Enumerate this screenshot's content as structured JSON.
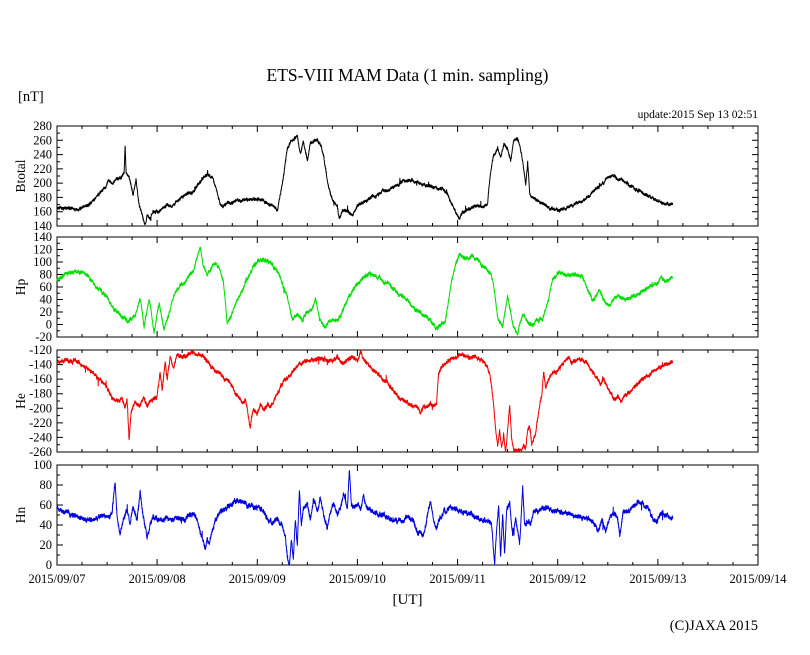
{
  "chart_data": {
    "type": "line",
    "title": "ETS-VIII MAM Data (1 min. sampling)",
    "unit_label": "[nT]",
    "update_note": "update:2015 Sep 13 02:51",
    "xlabel": "[UT]",
    "copyright": "(C)JAXA 2015",
    "x_tick_labels": [
      "2015/09/07",
      "2015/09/08",
      "2015/09/09",
      "2015/09/10",
      "2015/09/11",
      "2015/09/12",
      "2015/09/13",
      "2015/09/14"
    ],
    "x_range_days": [
      0,
      7
    ],
    "x_minor_tick_hours": 6,
    "data_end_day": 6.15,
    "grid": false,
    "legend": "none",
    "panels": [
      {
        "name": "Btotal",
        "color": "#000000",
        "ylim": [
          140,
          280
        ],
        "ytick_step": 20,
        "anchor_days": [
          0,
          0.1,
          0.2,
          0.3,
          0.36,
          0.42,
          0.48,
          0.52,
          0.56,
          0.6,
          0.64,
          0.67,
          0.68,
          0.69,
          0.73,
          0.76,
          0.79,
          0.82,
          0.85,
          0.88,
          0.9,
          0.93,
          0.96,
          1,
          1.05,
          1.1,
          1.15,
          1.2,
          1.25,
          1.3,
          1.35,
          1.4,
          1.45,
          1.5,
          1.55,
          1.6,
          1.63,
          1.66,
          1.7,
          1.75,
          1.8,
          1.85,
          1.9,
          1.95,
          2,
          2.05,
          2.1,
          2.15,
          2.2,
          2.25,
          2.3,
          2.35,
          2.4,
          2.43,
          2.46,
          2.5,
          2.53,
          2.57,
          2.6,
          2.63,
          2.66,
          2.7,
          2.73,
          2.76,
          2.8,
          2.82,
          2.85,
          2.9,
          2.95,
          3,
          3.05,
          3.1,
          3.15,
          3.2,
          3.25,
          3.3,
          3.35,
          3.4,
          3.45,
          3.5,
          3.55,
          3.6,
          3.65,
          3.7,
          3.75,
          3.8,
          3.85,
          3.9,
          3.95,
          4,
          4.02,
          4.05,
          4.1,
          4.15,
          4.2,
          4.25,
          4.3,
          4.33,
          4.36,
          4.4,
          4.43,
          4.46,
          4.5,
          4.53,
          4.56,
          4.6,
          4.63,
          4.65,
          4.68,
          4.7,
          4.72,
          4.75,
          4.8,
          4.85,
          4.9,
          4.95,
          5,
          5.05,
          5.1,
          5.15,
          5.2,
          5.25,
          5.3,
          5.35,
          5.4,
          5.45,
          5.5,
          5.55,
          5.6,
          5.65,
          5.7,
          5.75,
          5.8,
          5.85,
          5.9,
          5.95,
          6,
          6.05,
          6.1,
          6.15
        ],
        "anchor_values": [
          165,
          164,
          163,
          168,
          175,
          185,
          195,
          205,
          200,
          205,
          210,
          215,
          253,
          215,
          205,
          185,
          205,
          170,
          155,
          142,
          155,
          148,
          160,
          158,
          165,
          170,
          168,
          175,
          180,
          185,
          188,
          195,
          205,
          213,
          208,
          185,
          170,
          168,
          172,
          174,
          175,
          176,
          177,
          178,
          177,
          175,
          172,
          170,
          162,
          200,
          248,
          262,
          265,
          240,
          258,
          232,
          255,
          260,
          262,
          255,
          240,
          205,
          185,
          175,
          165,
          150,
          162,
          160,
          155,
          168,
          172,
          177,
          180,
          184,
          188,
          190,
          194,
          198,
          202,
          203,
          205,
          200,
          198,
          196,
          195,
          193,
          192,
          185,
          168,
          155,
          150,
          160,
          163,
          165,
          170,
          166,
          172,
          215,
          240,
          250,
          235,
          255,
          248,
          230,
          260,
          263,
          245,
          232,
          195,
          230,
          185,
          180,
          175,
          172,
          168,
          164,
          162,
          164,
          166,
          169,
          172,
          176,
          181,
          188,
          195,
          200,
          207,
          211,
          207,
          204,
          200,
          195,
          190,
          186,
          182,
          178,
          175,
          172,
          171,
          170
        ]
      },
      {
        "name": "Hp",
        "color": "#00dd00",
        "ylim": [
          -20,
          140
        ],
        "ytick_step": 20,
        "anchor_days": [
          0,
          0.08,
          0.18,
          0.28,
          0.38,
          0.5,
          0.58,
          0.65,
          0.72,
          0.78,
          0.83,
          0.87,
          0.92,
          0.97,
          1.02,
          1.07,
          1.12,
          1.18,
          1.28,
          1.36,
          1.43,
          1.46,
          1.5,
          1.56,
          1.63,
          1.66,
          1.7,
          1.73,
          1.78,
          1.85,
          1.95,
          2,
          2.08,
          2.15,
          2.22,
          2.3,
          2.35,
          2.4,
          2.45,
          2.5,
          2.55,
          2.58,
          2.62,
          2.68,
          2.73,
          2.78,
          2.83,
          2.9,
          3,
          3.08,
          3.15,
          3.25,
          3.33,
          3.42,
          3.5,
          3.58,
          3.65,
          3.72,
          3.78,
          3.83,
          3.88,
          3.93,
          3.98,
          4.02,
          4.08,
          4.15,
          4.2,
          4.25,
          4.3,
          4.35,
          4.4,
          4.45,
          4.5,
          4.55,
          4.6,
          4.65,
          4.7,
          4.75,
          4.8,
          4.85,
          4.9,
          4.95,
          5,
          5.05,
          5.12,
          5.18,
          5.25,
          5.3,
          5.35,
          5.42,
          5.48,
          5.53,
          5.6,
          5.65,
          5.7,
          5.77,
          5.85,
          5.93,
          6,
          6.03,
          6.07,
          6.12,
          6.15
        ],
        "anchor_values": [
          73,
          80,
          86,
          82,
          62,
          45,
          22,
          12,
          6,
          15,
          42,
          -3,
          40,
          -13,
          35,
          -8,
          20,
          50,
          70,
          85,
          124,
          95,
          78,
          98,
          88,
          70,
          3,
          10,
          30,
          55,
          90,
          100,
          103,
          95,
          80,
          45,
          8,
          15,
          5,
          20,
          25,
          42,
          10,
          -5,
          10,
          8,
          12,
          40,
          65,
          78,
          80,
          70,
          62,
          48,
          38,
          25,
          15,
          8,
          -7,
          -3,
          5,
          60,
          95,
          113,
          105,
          108,
          103,
          95,
          88,
          72,
          10,
          -5,
          45,
          0,
          -14,
          18,
          5,
          -3,
          8,
          10,
          35,
          72,
          80,
          83,
          78,
          80,
          76,
          55,
          38,
          55,
          32,
          30,
          48,
          40,
          42,
          46,
          55,
          62,
          66,
          78,
          70,
          73,
          77
        ]
      },
      {
        "name": "He",
        "color": "#ee0000",
        "ylim": [
          -260,
          -120
        ],
        "ytick_step": 20,
        "anchor_days": [
          0,
          0.1,
          0.2,
          0.3,
          0.4,
          0.5,
          0.55,
          0.6,
          0.65,
          0.68,
          0.7,
          0.72,
          0.74,
          0.78,
          0.82,
          0.86,
          0.9,
          0.95,
          1,
          1.03,
          1.05,
          1.08,
          1.1,
          1.13,
          1.16,
          1.2,
          1.25,
          1.3,
          1.35,
          1.4,
          1.45,
          1.5,
          1.55,
          1.6,
          1.65,
          1.7,
          1.75,
          1.8,
          1.85,
          1.88,
          1.9,
          1.93,
          1.96,
          2,
          2.03,
          2.06,
          2.1,
          2.13,
          2.17,
          2.22,
          2.28,
          2.33,
          2.4,
          2.45,
          2.5,
          2.55,
          2.6,
          2.65,
          2.7,
          2.75,
          2.8,
          2.85,
          2.9,
          2.95,
          3,
          3.03,
          3.06,
          3.1,
          3.15,
          3.2,
          3.25,
          3.3,
          3.35,
          3.4,
          3.45,
          3.5,
          3.55,
          3.6,
          3.63,
          3.67,
          3.7,
          3.73,
          3.76,
          3.79,
          3.81,
          3.84,
          3.87,
          3.9,
          3.95,
          4,
          4.05,
          4.1,
          4.15,
          4.2,
          4.25,
          4.3,
          4.33,
          4.36,
          4.38,
          4.4,
          4.42,
          4.44,
          4.46,
          4.48,
          4.5,
          4.52,
          4.54,
          4.56,
          4.6,
          4.64,
          4.66,
          4.68,
          4.7,
          4.72,
          4.74,
          4.76,
          4.78,
          4.8,
          4.82,
          4.84,
          4.86,
          4.88,
          4.9,
          4.92,
          4.95,
          5,
          5.05,
          5.1,
          5.15,
          5.2,
          5.25,
          5.3,
          5.33,
          5.36,
          5.4,
          5.43,
          5.46,
          5.5,
          5.53,
          5.56,
          5.6,
          5.63,
          5.66,
          5.7,
          5.75,
          5.8,
          5.85,
          5.9,
          5.95,
          6,
          6.05,
          6.1,
          6.15
        ],
        "anchor_values": [
          -135,
          -134,
          -136,
          -145,
          -158,
          -172,
          -185,
          -190,
          -188,
          -200,
          -192,
          -245,
          -205,
          -190,
          -196,
          -188,
          -195,
          -190,
          -185,
          -150,
          -175,
          -135,
          -160,
          -128,
          -145,
          -125,
          -130,
          -126,
          -123,
          -128,
          -127,
          -135,
          -142,
          -150,
          -155,
          -162,
          -172,
          -182,
          -192,
          -188,
          -200,
          -228,
          -202,
          -207,
          -195,
          -205,
          -195,
          -200,
          -188,
          -175,
          -162,
          -152,
          -143,
          -138,
          -135,
          -133,
          -134,
          -132,
          -133,
          -134,
          -131,
          -140,
          -133,
          -128,
          -134,
          -122,
          -132,
          -138,
          -146,
          -153,
          -160,
          -167,
          -175,
          -183,
          -188,
          -192,
          -195,
          -198,
          -205,
          -197,
          -200,
          -195,
          -198,
          -193,
          -150,
          -145,
          -140,
          -136,
          -132,
          -130,
          -126,
          -130,
          -128,
          -131,
          -135,
          -142,
          -160,
          -195,
          -228,
          -252,
          -230,
          -255,
          -235,
          -258,
          -230,
          -196,
          -240,
          -258,
          -259,
          -257,
          -250,
          -256,
          -230,
          -225,
          -250,
          -242,
          -235,
          -215,
          -195,
          -185,
          -150,
          -175,
          -165,
          -158,
          -152,
          -148,
          -140,
          -133,
          -136,
          -132,
          -134,
          -140,
          -148,
          -152,
          -160,
          -168,
          -160,
          -172,
          -180,
          -188,
          -182,
          -190,
          -185,
          -180,
          -172,
          -165,
          -160,
          -155,
          -150,
          -146,
          -142,
          -139,
          -137
        ]
      },
      {
        "name": "Hn",
        "color": "#0000dd",
        "ylim": [
          0,
          100
        ],
        "ytick_step": 20,
        "anchor_days": [
          0,
          0.05,
          0.1,
          0.15,
          0.2,
          0.25,
          0.3,
          0.35,
          0.4,
          0.45,
          0.5,
          0.55,
          0.58,
          0.6,
          0.63,
          0.66,
          0.7,
          0.73,
          0.76,
          0.8,
          0.83,
          0.86,
          0.9,
          0.93,
          0.96,
          1,
          1.05,
          1.1,
          1.15,
          1.2,
          1.25,
          1.3,
          1.35,
          1.4,
          1.44,
          1.48,
          1.5,
          1.52,
          1.55,
          1.6,
          1.65,
          1.7,
          1.75,
          1.8,
          1.85,
          1.9,
          1.95,
          2,
          2.05,
          2.1,
          2.15,
          2.2,
          2.25,
          2.28,
          2.3,
          2.32,
          2.34,
          2.36,
          2.38,
          2.4,
          2.42,
          2.44,
          2.46,
          2.5,
          2.53,
          2.56,
          2.6,
          2.63,
          2.66,
          2.7,
          2.73,
          2.76,
          2.8,
          2.83,
          2.86,
          2.9,
          2.92,
          2.94,
          2.97,
          3,
          3.03,
          3.06,
          3.1,
          3.15,
          3.2,
          3.25,
          3.3,
          3.35,
          3.4,
          3.45,
          3.5,
          3.55,
          3.6,
          3.63,
          3.66,
          3.7,
          3.73,
          3.76,
          3.79,
          3.83,
          3.87,
          3.92,
          3.97,
          4.02,
          4.08,
          4.14,
          4.2,
          4.25,
          4.3,
          4.34,
          4.37,
          4.39,
          4.41,
          4.43,
          4.45,
          4.47,
          4.49,
          4.52,
          4.55,
          4.58,
          4.62,
          4.65,
          4.67,
          4.7,
          4.73,
          4.76,
          4.8,
          4.85,
          4.9,
          4.95,
          5,
          5.05,
          5.1,
          5.15,
          5.2,
          5.25,
          5.3,
          5.35,
          5.4,
          5.44,
          5.48,
          5.52,
          5.56,
          5.6,
          5.62,
          5.65,
          5.7,
          5.75,
          5.81,
          5.85,
          5.9,
          5.95,
          5.99,
          6.03,
          6.08,
          6.12,
          6.15
        ],
        "anchor_values": [
          57,
          55,
          52,
          50,
          47,
          48,
          46,
          44,
          47,
          49,
          47,
          52,
          83,
          50,
          30,
          45,
          55,
          40,
          58,
          45,
          73,
          48,
          26,
          42,
          48,
          46,
          45,
          47,
          46,
          48,
          47,
          48,
          50,
          46,
          30,
          16,
          25,
          20,
          35,
          48,
          55,
          58,
          60,
          62,
          63,
          60,
          58,
          57,
          56,
          45,
          42,
          45,
          40,
          30,
          10,
          0,
          25,
          5,
          45,
          20,
          75,
          40,
          55,
          60,
          45,
          65,
          55,
          68,
          50,
          38,
          55,
          62,
          50,
          58,
          70,
          55,
          95,
          60,
          58,
          62,
          55,
          68,
          58,
          55,
          52,
          50,
          48,
          45,
          44,
          46,
          48,
          45,
          32,
          35,
          30,
          50,
          65,
          45,
          38,
          48,
          54,
          57,
          58,
          56,
          53,
          50,
          47,
          44,
          43,
          42,
          0,
          35,
          60,
          8,
          50,
          12,
          55,
          62,
          30,
          45,
          20,
          80,
          40,
          43,
          42,
          55,
          54,
          56,
          58,
          55,
          54,
          53,
          52,
          50,
          48,
          47,
          46,
          45,
          35,
          45,
          32,
          48,
          52,
          45,
          28,
          52,
          55,
          58,
          63,
          58,
          57,
          48,
          42,
          50,
          50,
          49,
          48
        ]
      }
    ]
  }
}
